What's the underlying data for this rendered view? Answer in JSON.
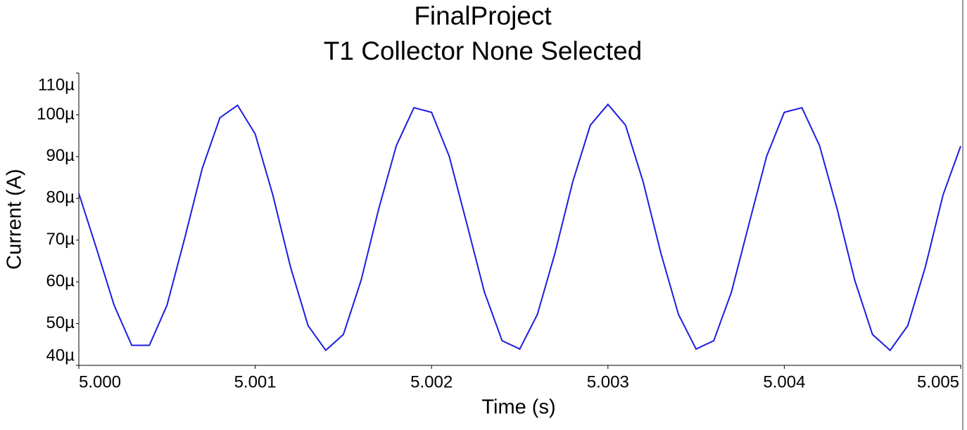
{
  "chart_data": {
    "type": "line",
    "title": "FinalProject",
    "subtitle": "T1 Collector None Selected",
    "x_label": "Time (s)",
    "y_label": "Current (A)",
    "x": [
      5.0,
      5.0001,
      5.0002,
      5.0003,
      5.0004,
      5.0005,
      5.0006,
      5.0007,
      5.0008,
      5.0009,
      5.001,
      5.0011,
      5.0012,
      5.0013,
      5.0014,
      5.0015,
      5.0016,
      5.0017,
      5.0018,
      5.0019,
      5.002,
      5.0021,
      5.0022,
      5.0023,
      5.0024,
      5.0025,
      5.0026,
      5.0027,
      5.0028,
      5.0029,
      5.003,
      5.0031,
      5.0032,
      5.0033,
      5.0034,
      5.0035,
      5.0036,
      5.0037,
      5.0038,
      5.0039,
      5.004,
      5.0041,
      5.0042,
      5.0043,
      5.0044,
      5.0045,
      5.0046,
      5.0047,
      5.0048,
      5.0049,
      5.005
    ],
    "series": [
      {
        "color": "#1c1ce0",
        "values": [
          8.12e-05,
          6.8e-05,
          5.44e-05,
          4.48e-05,
          4.48e-05,
          5.44e-05,
          7.04e-05,
          8.72e-05,
          9.93e-05,
          0.0001023,
          9.54e-05,
          8.08e-05,
          6.36e-05,
          4.95e-05,
          4.36e-05,
          4.74e-05,
          6.03e-05,
          7.74e-05,
          9.26e-05,
          0.0001017,
          0.0001006,
          9.01e-05,
          7.39e-05,
          5.75e-05,
          4.59e-05,
          4.39e-05,
          5.22e-05,
          6.69e-05,
          8.39e-05,
          9.75e-05,
          0.0001025,
          9.75e-05,
          8.39e-05,
          6.69e-05,
          5.22e-05,
          4.39e-05,
          4.59e-05,
          5.75e-05,
          7.39e-05,
          9.01e-05,
          0.0001006,
          0.0001017,
          9.26e-05,
          7.74e-05,
          6.03e-05,
          4.74e-05,
          4.36e-05,
          4.95e-05,
          6.36e-05,
          8.08e-05,
          9.25e-05
        ]
      }
    ],
    "xlim": [
      5.0,
      5.005
    ],
    "xticks": [
      {
        "value": 5.0,
        "label": "5.000"
      },
      5.001,
      5.002,
      5.003,
      5.004,
      5.005
    ],
    "ylim": [
      4e-05,
      0.00011
    ],
    "yticks": [
      {
        "value": 4e-05,
        "label": "40µ"
      },
      {
        "value": 5e-05,
        "label": "50µ"
      },
      {
        "value": 6e-05,
        "label": "60µ"
      },
      {
        "value": 7e-05,
        "label": "70µ"
      },
      {
        "value": 8e-05,
        "label": "80µ"
      },
      {
        "value": 9e-05,
        "label": "90µ"
      },
      {
        "value": 0.0001,
        "label": "100µ"
      },
      {
        "value": 0.00011,
        "label": "110µ"
      }
    ],
    "grid": false
  }
}
